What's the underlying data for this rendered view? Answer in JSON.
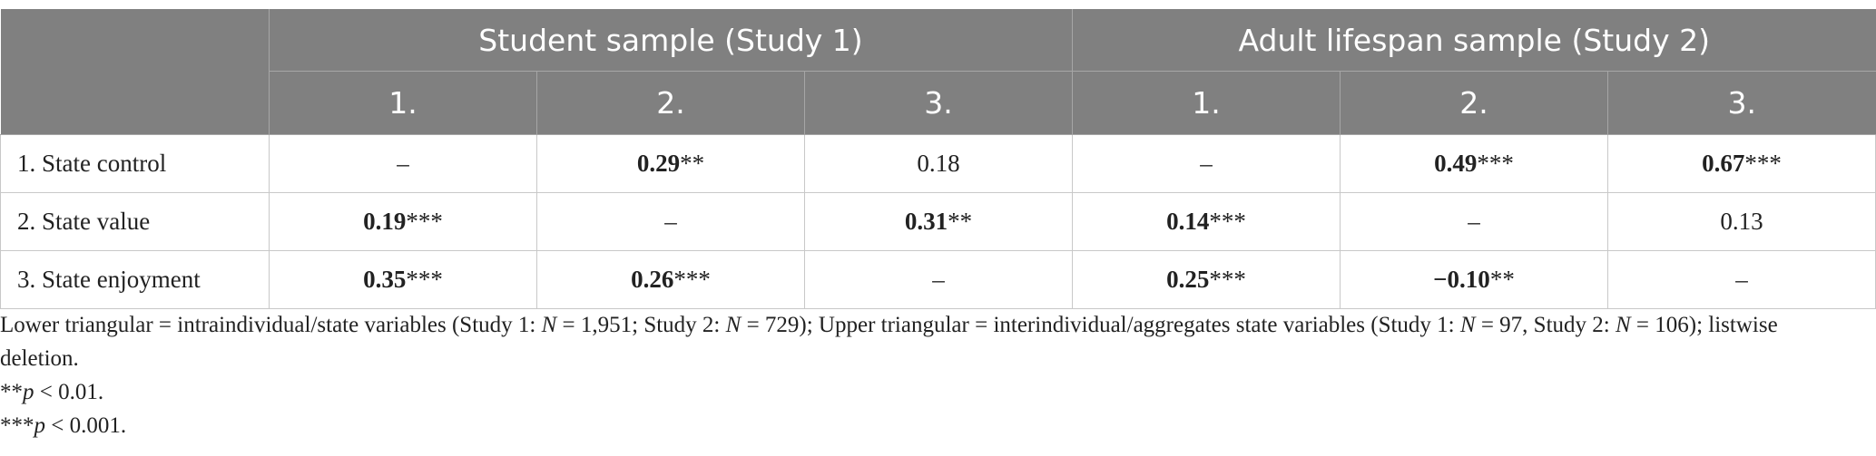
{
  "table": {
    "groups": [
      "Student sample (Study 1)",
      "Adult lifespan sample (Study 2)"
    ],
    "subheaders": [
      "1.",
      "2.",
      "3.",
      "1.",
      "2.",
      "3."
    ],
    "rows": [
      {
        "label": "1. State control",
        "cells": [
          {
            "text": "–"
          },
          {
            "bold": "0.29",
            "stars": "**"
          },
          {
            "text": "0.18"
          },
          {
            "text": "–"
          },
          {
            "bold": "0.49",
            "stars": "***"
          },
          {
            "bold": "0.67",
            "stars": "***"
          }
        ]
      },
      {
        "label": "2. State value",
        "cells": [
          {
            "bold": "0.19",
            "stars": "***"
          },
          {
            "text": "–"
          },
          {
            "bold": "0.31",
            "stars": "**"
          },
          {
            "bold": "0.14",
            "stars": "***"
          },
          {
            "text": "–"
          },
          {
            "text": "0.13"
          }
        ]
      },
      {
        "label": "3. State enjoyment",
        "cells": [
          {
            "bold": "0.35",
            "stars": "***"
          },
          {
            "bold": "0.26",
            "stars": "***"
          },
          {
            "text": "–"
          },
          {
            "bold": "0.25",
            "stars": "***"
          },
          {
            "bold": "−0.10",
            "stars": "**"
          },
          {
            "text": "–"
          }
        ]
      }
    ]
  },
  "notes": [
    [
      "Lower triangular = intraindividual/state variables (Study 1: ",
      "N",
      " = 1,951; Study 2: ",
      "N",
      " = 729); Upper triangular = interindividual/aggregates state variables (Study 1: ",
      "N",
      " = 97, Study 2: ",
      "N",
      " = 106); listwise deletion."
    ],
    [
      "**",
      "p",
      " < 0.01."
    ],
    [
      "***",
      "p",
      " < 0.001."
    ]
  ]
}
